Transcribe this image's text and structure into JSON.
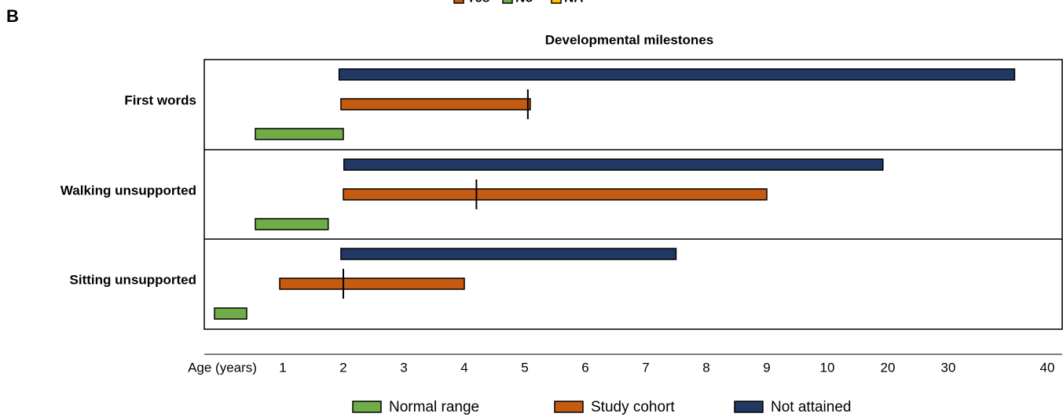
{
  "panel_label": "B",
  "top_legend": [
    {
      "label": "Yes",
      "color": "#c55a11"
    },
    {
      "label": "No",
      "color": "#70ad47"
    },
    {
      "label": "NA",
      "color": "#ffc000"
    }
  ],
  "chart_data": {
    "type": "range-bar",
    "title": "Developmental milestones",
    "xlabel": "Age (years)",
    "categories": [
      "First words",
      "Walking unsupported",
      "Sitting unsupported"
    ],
    "series": [
      {
        "name": "Normal range",
        "color": "#70ad47",
        "starts": [
          0.65,
          0.65,
          0.13
        ],
        "ends": [
          2,
          1.75,
          0.54
        ]
      },
      {
        "name": "Study cohort",
        "color": "#c55a11",
        "starts": [
          1.96,
          2,
          0.96
        ],
        "ends": [
          5.09,
          9,
          4
        ]
      },
      {
        "name": "Not attained",
        "color": "#203864",
        "starts": [
          1.93,
          2.01,
          1.96
        ],
        "ends": [
          36.7,
          19.2,
          7.5
        ]
      }
    ],
    "medians": [
      5.05,
      4.2,
      2
    ],
    "xlim": [
      0,
      40
    ],
    "xticks": [
      1,
      2,
      3,
      4,
      5,
      6,
      7,
      8,
      9,
      10,
      20,
      30,
      40
    ]
  }
}
